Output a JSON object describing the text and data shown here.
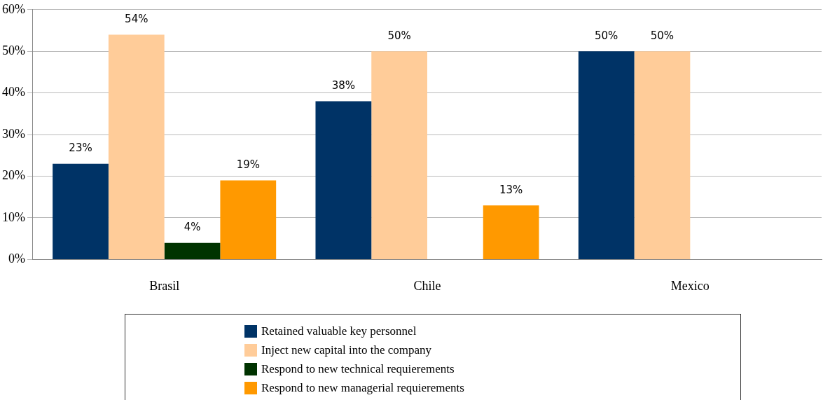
{
  "chart_data": {
    "type": "bar",
    "categories": [
      "Brasil",
      "Chile",
      "Mexico"
    ],
    "series": [
      {
        "name": "Retained valuable key personnel",
        "color": "#003366",
        "values": [
          23,
          38,
          50
        ],
        "value_labels": [
          "23%",
          "38%",
          "50%"
        ]
      },
      {
        "name": "Inject new capital into the company",
        "color": "#ffcc99",
        "values": [
          54,
          50,
          50
        ],
        "value_labels": [
          "54%",
          "50%",
          "50%"
        ]
      },
      {
        "name": "Respond to new technical requierements",
        "color": "#003300",
        "values": [
          4,
          null,
          null
        ],
        "value_labels": [
          "4%",
          null,
          null
        ]
      },
      {
        "name": "Respond to new managerial requierements",
        "color": "#ff9900",
        "values": [
          19,
          13,
          null
        ],
        "value_labels": [
          "19%",
          "13%",
          null
        ]
      }
    ],
    "ylim": [
      0,
      60
    ],
    "yticks": [
      {
        "value": 0,
        "label": "0%"
      },
      {
        "value": 10,
        "label": "10%"
      },
      {
        "value": 20,
        "label": "20%"
      },
      {
        "value": 30,
        "label": "30%"
      },
      {
        "value": 40,
        "label": "40%"
      },
      {
        "value": 50,
        "label": "50%"
      },
      {
        "value": 60,
        "label": "60%"
      }
    ],
    "grid": "y",
    "legend": "bottom"
  }
}
